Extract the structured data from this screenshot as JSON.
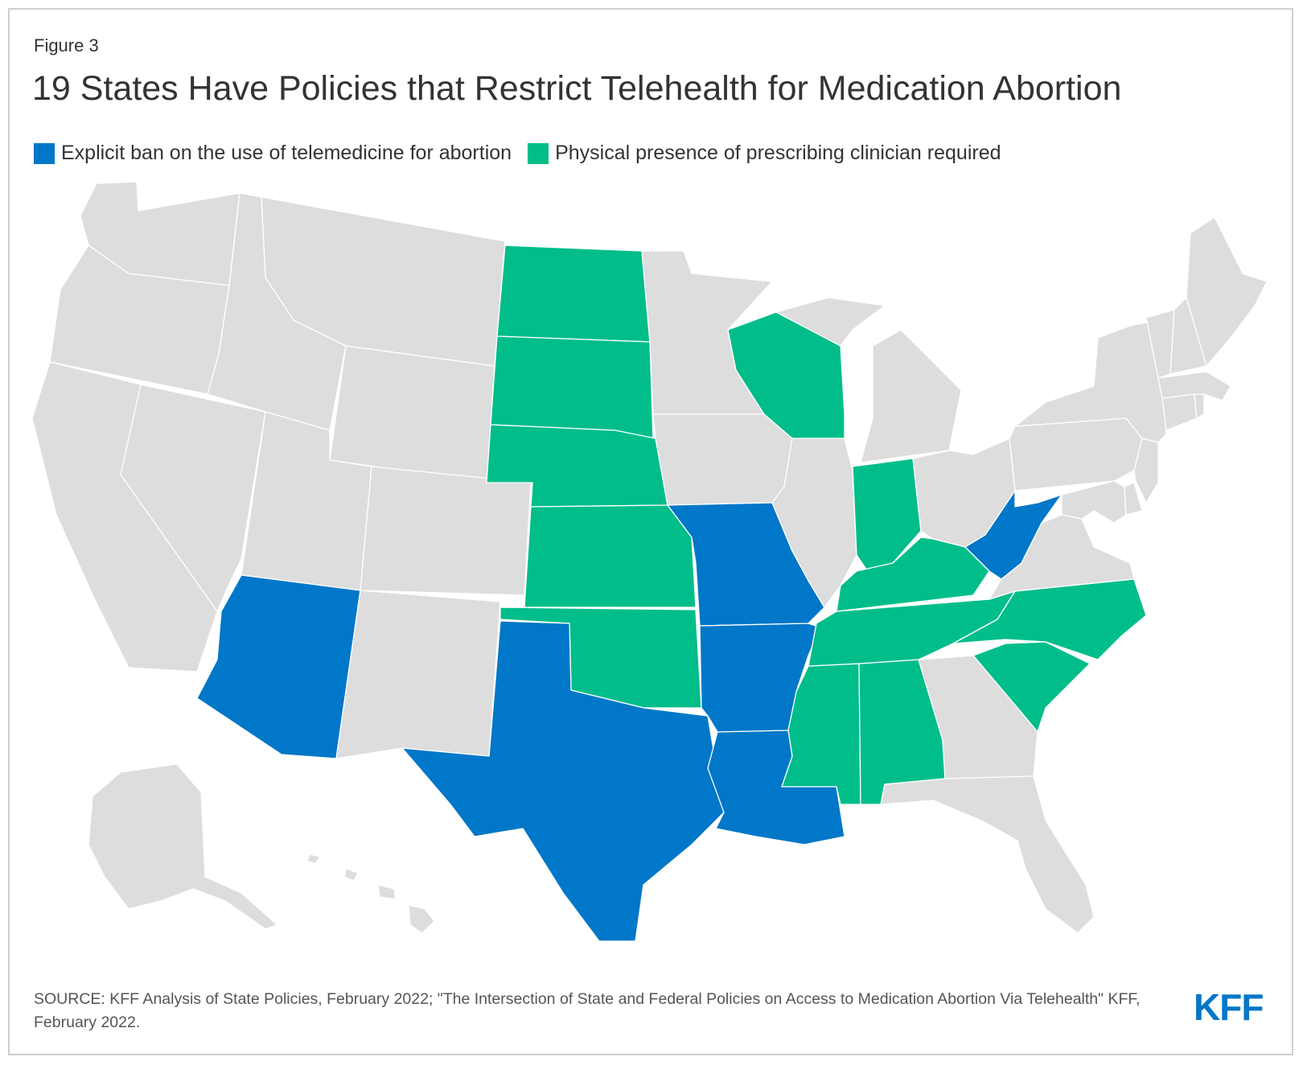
{
  "figure_label": "Figure 3",
  "title": "19 States Have Policies that Restrict Telehealth for Medication Abortion",
  "legend": [
    {
      "label": "Explicit ban on the use of telemedicine for abortion",
      "color": "#0077c8",
      "category": "ban"
    },
    {
      "label": "Physical presence of prescribing clinician required",
      "color": "#00bd8a",
      "category": "presence"
    }
  ],
  "colors": {
    "none": "#dddddd",
    "ban": "#0077c8",
    "presence": "#00bd8a",
    "border": "#ffffff"
  },
  "state_policies": {
    "AZ": "ban",
    "TX": "ban",
    "LA": "ban",
    "MO": "ban",
    "AR": "ban",
    "WV": "ban",
    "ND": "presence",
    "SD": "presence",
    "NE": "presence",
    "KS": "presence",
    "OK": "presence",
    "IN": "presence",
    "KY": "presence",
    "TN": "presence",
    "MS": "presence",
    "AL": "presence",
    "SC": "presence",
    "NC": "presence",
    "WI": "presence"
  },
  "source": "SOURCE: KFF Analysis of State Policies, February 2022; \"The Intersection of State and Federal Policies on Access to Medication Abortion Via Telehealth\" KFF, February 2022.",
  "logo_text": "KFF"
}
